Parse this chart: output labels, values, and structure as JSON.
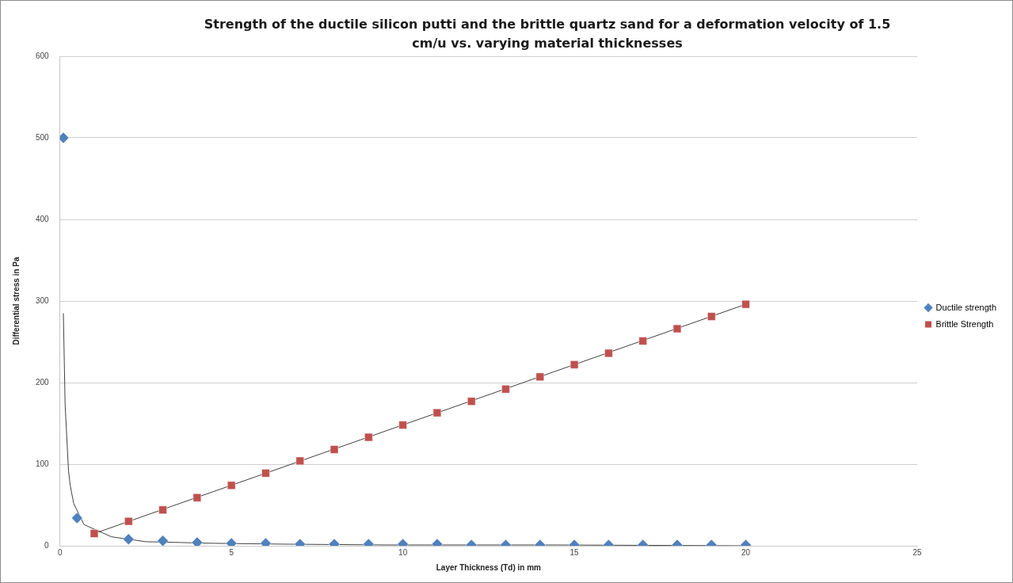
{
  "chart_data": {
    "type": "scatter",
    "title": "Strength of the ductile silicon putti and the brittle quartz sand for a deformation velocity of 1.5 cm/u  vs. varying material thicknesses",
    "xlabel": "Layer Thickness (Td) in mm",
    "ylabel": "Differential stress in Pa",
    "xlim": [
      0,
      25
    ],
    "xticks": [
      0,
      5,
      10,
      15,
      20,
      25
    ],
    "ylim": [
      0,
      600
    ],
    "yticks": [
      0,
      100,
      200,
      300,
      400,
      500,
      600
    ],
    "grid": "y",
    "legend": "right",
    "series": [
      {
        "name": "Ductile strength",
        "color": "#4f81bd",
        "marker": "diamond",
        "x": [
          0.1,
          0.5,
          2,
          3,
          4,
          5,
          6,
          7,
          8,
          9,
          10,
          11,
          12,
          13,
          14,
          15,
          16,
          17,
          18,
          19,
          20
        ],
        "values": [
          500,
          34,
          8,
          6,
          4,
          3,
          3,
          2,
          2,
          2,
          2,
          2,
          1,
          1,
          1,
          1,
          1,
          1,
          1,
          1,
          1
        ]
      },
      {
        "name": "Brittle Strength",
        "color": "#c0504d",
        "marker": "square",
        "x": [
          1,
          2,
          3,
          4,
          5,
          6,
          7,
          8,
          9,
          10,
          11,
          12,
          13,
          14,
          15,
          16,
          17,
          18,
          19,
          20
        ],
        "values": [
          15,
          30,
          44,
          59,
          74,
          89,
          104,
          118,
          133,
          148,
          163,
          177,
          192,
          207,
          222,
          236,
          251,
          266,
          281,
          296
        ]
      },
      {
        "type": "line",
        "color": "#404040",
        "marker": "none",
        "x": [
          0.1,
          0.15,
          0.2,
          0.25,
          0.3,
          0.4,
          0.7,
          1.5,
          2.5,
          3.5,
          4.5,
          6.5,
          9.5,
          14.5,
          20
        ],
        "values": [
          285,
          174,
          132,
          92,
          74,
          52,
          26,
          11,
          5,
          4,
          3,
          2,
          1,
          1,
          0
        ]
      },
      {
        "type": "line",
        "color": "#404040",
        "marker": "none",
        "x": [
          1,
          20
        ],
        "values": [
          15,
          296
        ]
      }
    ]
  }
}
